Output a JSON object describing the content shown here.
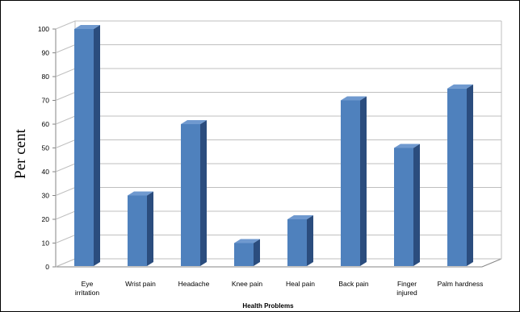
{
  "chart_data": {
    "type": "bar",
    "categories": [
      "Eye irritation",
      "Wrist pain",
      "Headache",
      "Knee pain",
      "Heal pain",
      "Back pain",
      "Finger injured",
      "Palm hardness"
    ],
    "values": [
      100,
      30,
      60,
      10,
      20,
      70,
      50,
      75
    ],
    "title": "",
    "xlabel": "Health Problems",
    "ylabel": "Per cent",
    "ylim": [
      0,
      100
    ],
    "yticks": [
      0,
      10,
      20,
      30,
      40,
      50,
      60,
      70,
      80,
      90,
      100
    ],
    "grid": true,
    "legend": "none",
    "style": "3d-column",
    "colors": {
      "bar_front": "#4f81bd",
      "bar_side": "#2b4d7e",
      "bar_top": "#6f99cf",
      "grid": "#bfbfbf",
      "axis": "#868686"
    }
  }
}
